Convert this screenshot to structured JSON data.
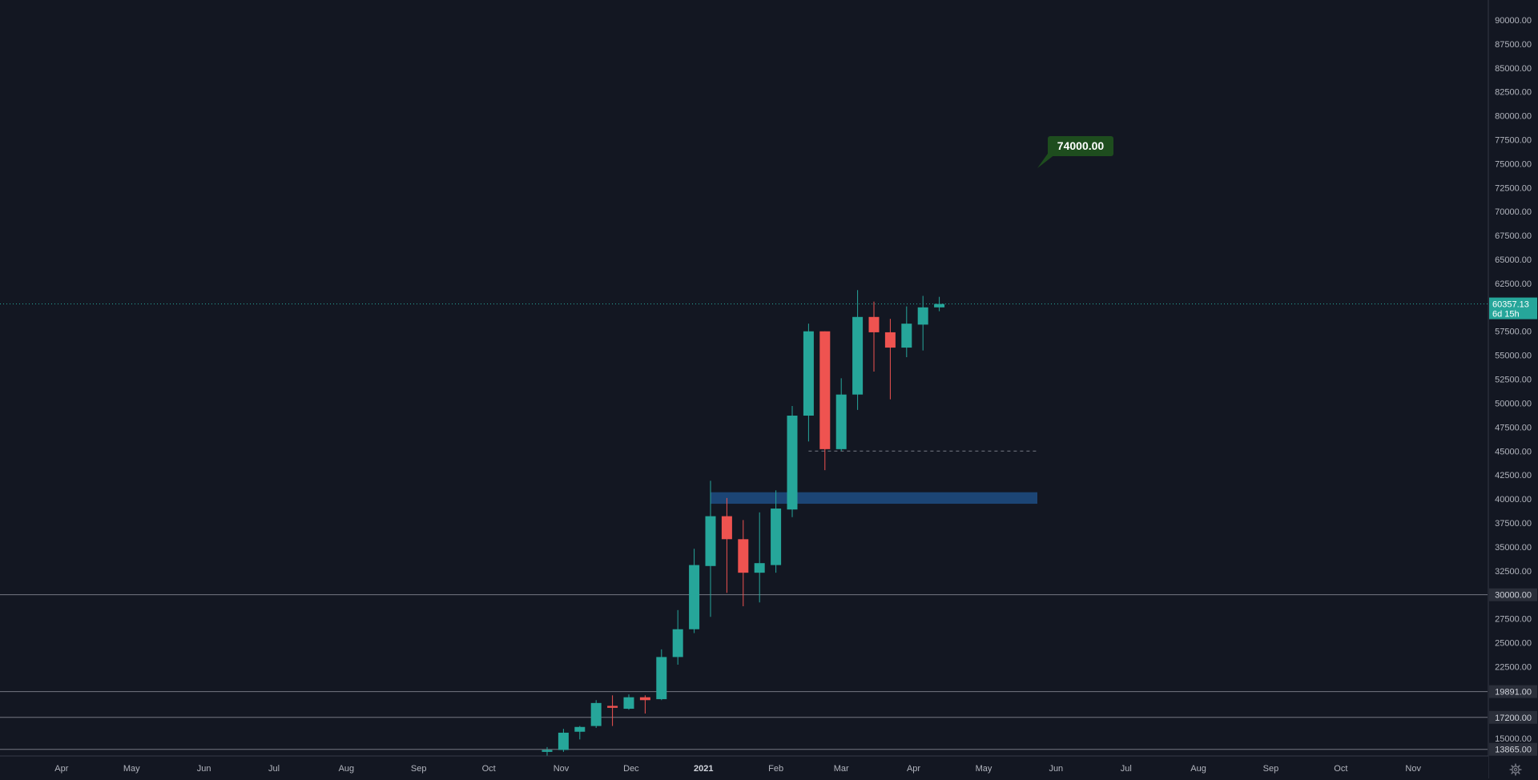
{
  "colors": {
    "background": "#131722",
    "bull": "#26a69a",
    "bear": "#ef5350",
    "zone": "#1e4a7e",
    "callout_bg": "#1e4d1e",
    "axis_text": "#b2b5be"
  },
  "settings_icon": "gear-icon",
  "chart_data": {
    "type": "candlestick",
    "interval": "weekly",
    "ylim": [
      12000,
      91000
    ],
    "grid": false,
    "price_axis_ticks": [
      "15000.00",
      "17500.00",
      "20000.00",
      "22500.00",
      "25000.00",
      "27500.00",
      "30000.00",
      "32500.00",
      "35000.00",
      "37500.00",
      "40000.00",
      "42500.00",
      "45000.00",
      "47500.00",
      "50000.00",
      "52500.00",
      "55000.00",
      "57500.00",
      "60000.00",
      "62500.00",
      "65000.00",
      "67500.00",
      "70000.00",
      "72500.00",
      "75000.00",
      "77500.00",
      "80000.00",
      "82500.00",
      "85000.00",
      "87500.00",
      "90000.00"
    ],
    "time_axis_labels": [
      "Apr",
      "May",
      "Jun",
      "Jul",
      "Aug",
      "Sep",
      "Oct",
      "Nov",
      "Dec",
      "2021",
      "Feb",
      "Mar",
      "Apr",
      "May",
      "Jun",
      "Jul",
      "Aug",
      "Sep",
      "Oct",
      "Nov"
    ],
    "candles": [
      {
        "date": "2020-10-26",
        "open": 13600,
        "high": 14100,
        "low": 13200,
        "close": 13800
      },
      {
        "date": "2020-11-02",
        "open": 13800,
        "high": 16000,
        "low": 13600,
        "close": 15600
      },
      {
        "date": "2020-11-09",
        "open": 15700,
        "high": 16300,
        "low": 14900,
        "close": 16200
      },
      {
        "date": "2020-11-16",
        "open": 16300,
        "high": 19000,
        "low": 16100,
        "close": 18700
      },
      {
        "date": "2020-11-23",
        "open": 18400,
        "high": 19500,
        "low": 16300,
        "close": 18200
      },
      {
        "date": "2020-11-30",
        "open": 18100,
        "high": 19600,
        "low": 18000,
        "close": 19300
      },
      {
        "date": "2020-12-07",
        "open": 19300,
        "high": 19500,
        "low": 17600,
        "close": 19000
      },
      {
        "date": "2020-12-14",
        "open": 19100,
        "high": 24300,
        "low": 19000,
        "close": 23500
      },
      {
        "date": "2020-12-21",
        "open": 23500,
        "high": 28400,
        "low": 22700,
        "close": 26400
      },
      {
        "date": "2020-12-28",
        "open": 26400,
        "high": 34800,
        "low": 26000,
        "close": 33100
      },
      {
        "date": "2021-01-04",
        "open": 33000,
        "high": 41900,
        "low": 27700,
        "close": 38200
      },
      {
        "date": "2021-01-11",
        "open": 38200,
        "high": 40100,
        "low": 30200,
        "close": 35800
      },
      {
        "date": "2021-01-18",
        "open": 35800,
        "high": 37800,
        "low": 28800,
        "close": 32300
      },
      {
        "date": "2021-01-25",
        "open": 32300,
        "high": 38600,
        "low": 29200,
        "close": 33300
      },
      {
        "date": "2021-02-01",
        "open": 33100,
        "high": 40900,
        "low": 32300,
        "close": 39000
      },
      {
        "date": "2021-02-08",
        "open": 38900,
        "high": 49700,
        "low": 38100,
        "close": 48700
      },
      {
        "date": "2021-02-15",
        "open": 48700,
        "high": 58300,
        "low": 46000,
        "close": 57500
      },
      {
        "date": "2021-02-22",
        "open": 57500,
        "high": 57500,
        "low": 43000,
        "close": 45200
      },
      {
        "date": "2021-03-01",
        "open": 45200,
        "high": 52600,
        "low": 45000,
        "close": 50900
      },
      {
        "date": "2021-03-08",
        "open": 50900,
        "high": 61800,
        "low": 49300,
        "close": 59000
      },
      {
        "date": "2021-03-15",
        "open": 59000,
        "high": 60600,
        "low": 53300,
        "close": 57400
      },
      {
        "date": "2021-03-22",
        "open": 57400,
        "high": 58800,
        "low": 50400,
        "close": 55800
      },
      {
        "date": "2021-03-29",
        "open": 55800,
        "high": 60100,
        "low": 54800,
        "close": 58300
      },
      {
        "date": "2021-04-05",
        "open": 58200,
        "high": 61200,
        "low": 55500,
        "close": 60000
      },
      {
        "date": "2021-04-12",
        "open": 60000,
        "high": 61100,
        "low": 59600,
        "close": 60357
      }
    ],
    "horizontal_lines": [
      {
        "price": 30000,
        "label": "30000.00"
      },
      {
        "price": 19891,
        "label": "19891.00"
      },
      {
        "price": 17200,
        "label": "17200.00"
      },
      {
        "price": 13865,
        "label": "13865.00"
      }
    ],
    "dashed_line": {
      "price": 45000,
      "from": "2021-02-15",
      "to": "2021-05-24"
    },
    "zone": {
      "from_price": 39500,
      "to_price": 40700,
      "from": "2021-01-04",
      "to": "2021-05-24"
    },
    "current_price": {
      "value": 60357.13,
      "label": "60357.13",
      "countdown": "6d 15h"
    },
    "target_callout": {
      "value": 74000,
      "label": "74000.00",
      "date": "2021-05-24"
    }
  }
}
